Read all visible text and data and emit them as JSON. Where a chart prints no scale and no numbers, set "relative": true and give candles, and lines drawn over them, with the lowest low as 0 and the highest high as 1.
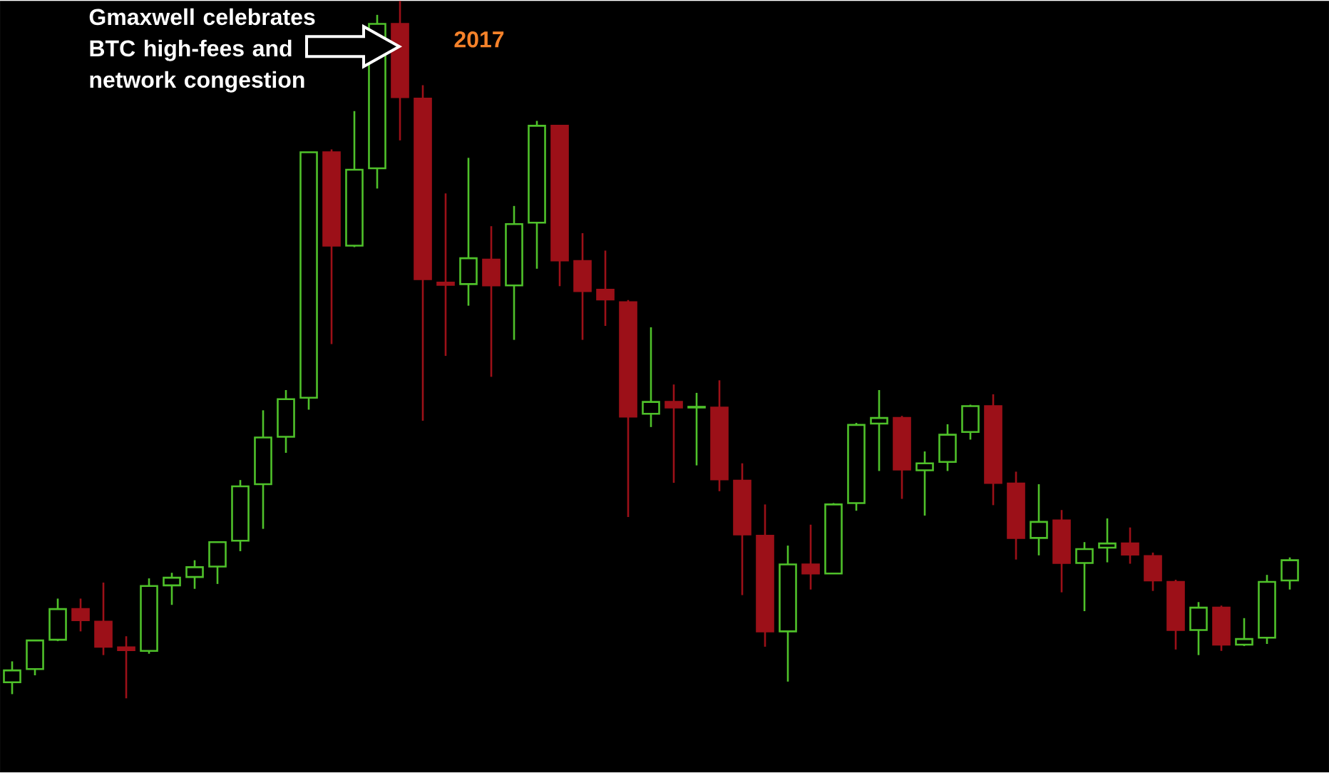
{
  "chart_data": {
    "type": "candlestick",
    "relative": true,
    "tick_labels": false,
    "categories": [
      null,
      null,
      null,
      null,
      null,
      null,
      null,
      null,
      null,
      null,
      null,
      null,
      null,
      null,
      null,
      null,
      null,
      null,
      null,
      null,
      null,
      null,
      null,
      null,
      null,
      null,
      null,
      null,
      null,
      null,
      null,
      null,
      null,
      null,
      null,
      null,
      null,
      null,
      null,
      null,
      null,
      null,
      null,
      null,
      null,
      null,
      null,
      null,
      null,
      null,
      null,
      null,
      null,
      null,
      null,
      null,
      null
    ],
    "ohlc": [
      [
        0.023,
        0.053,
        0.006,
        0.04
      ],
      [
        0.042,
        0.083,
        0.033,
        0.083
      ],
      [
        0.084,
        0.143,
        0.082,
        0.128
      ],
      [
        0.128,
        0.143,
        0.096,
        0.112
      ],
      [
        0.11,
        0.166,
        0.062,
        0.074
      ],
      [
        0.073,
        0.089,
        0.0,
        0.069
      ],
      [
        0.068,
        0.172,
        0.064,
        0.161
      ],
      [
        0.162,
        0.18,
        0.134,
        0.173
      ],
      [
        0.174,
        0.198,
        0.157,
        0.188
      ],
      [
        0.189,
        0.224,
        0.164,
        0.224
      ],
      [
        0.226,
        0.313,
        0.211,
        0.304
      ],
      [
        0.307,
        0.413,
        0.243,
        0.374
      ],
      [
        0.375,
        0.442,
        0.352,
        0.429
      ],
      [
        0.431,
        0.783,
        0.414,
        0.783
      ],
      [
        0.783,
        0.787,
        0.508,
        0.649
      ],
      [
        0.649,
        0.842,
        0.647,
        0.758
      ],
      [
        0.76,
        0.98,
        0.731,
        0.967
      ],
      [
        0.967,
        1.0,
        0.8,
        0.862
      ],
      [
        0.86,
        0.879,
        0.398,
        0.601
      ],
      [
        0.596,
        0.724,
        0.491,
        0.593
      ],
      [
        0.594,
        0.775,
        0.563,
        0.631
      ],
      [
        0.629,
        0.677,
        0.461,
        0.592
      ],
      [
        0.592,
        0.706,
        0.514,
        0.68
      ],
      [
        0.682,
        0.828,
        0.616,
        0.821
      ],
      [
        0.821,
        0.821,
        0.591,
        0.628
      ],
      [
        0.627,
        0.667,
        0.514,
        0.584
      ],
      [
        0.586,
        0.642,
        0.534,
        0.572
      ],
      [
        0.568,
        0.571,
        0.26,
        0.404
      ],
      [
        0.408,
        0.532,
        0.389,
        0.425
      ],
      [
        0.425,
        0.45,
        0.309,
        0.417
      ],
      [
        0.417,
        0.438,
        0.334,
        0.418
      ],
      [
        0.417,
        0.456,
        0.297,
        0.314
      ],
      [
        0.312,
        0.337,
        0.148,
        0.235
      ],
      [
        0.233,
        0.278,
        0.074,
        0.096
      ],
      [
        0.096,
        0.219,
        0.024,
        0.192
      ],
      [
        0.192,
        0.249,
        0.156,
        0.179
      ],
      [
        0.179,
        0.28,
        0.179,
        0.278
      ],
      [
        0.28,
        0.395,
        0.269,
        0.392
      ],
      [
        0.394,
        0.442,
        0.326,
        0.402
      ],
      [
        0.402,
        0.405,
        0.286,
        0.328
      ],
      [
        0.327,
        0.354,
        0.262,
        0.337
      ],
      [
        0.339,
        0.393,
        0.326,
        0.378
      ],
      [
        0.382,
        0.421,
        0.371,
        0.419
      ],
      [
        0.419,
        0.436,
        0.277,
        0.309
      ],
      [
        0.308,
        0.325,
        0.199,
        0.23
      ],
      [
        0.23,
        0.307,
        0.205,
        0.253
      ],
      [
        0.255,
        0.27,
        0.152,
        0.194
      ],
      [
        0.194,
        0.224,
        0.125,
        0.214
      ],
      [
        0.216,
        0.258,
        0.195,
        0.222
      ],
      [
        0.222,
        0.245,
        0.193,
        0.206
      ],
      [
        0.204,
        0.209,
        0.154,
        0.169
      ],
      [
        0.167,
        0.17,
        0.07,
        0.098
      ],
      [
        0.098,
        0.138,
        0.062,
        0.13
      ],
      [
        0.13,
        0.133,
        0.068,
        0.077
      ],
      [
        0.077,
        0.115,
        0.075,
        0.085
      ],
      [
        0.087,
        0.177,
        0.078,
        0.167
      ],
      [
        0.169,
        0.202,
        0.156,
        0.198
      ]
    ],
    "colors": [
      "#4fc12a",
      "#4fc12a",
      "#4fc12a",
      "#9c1018",
      "#9c1018",
      "#9c1018",
      "#4fc12a",
      "#4fc12a",
      "#4fc12a",
      "#4fc12a",
      "#4fc12a",
      "#4fc12a",
      "#4fc12a",
      "#4fc12a",
      "#9c1018",
      "#4fc12a",
      "#4fc12a",
      "#9c1018",
      "#9c1018",
      "#9c1018",
      "#4fc12a",
      "#9c1018",
      "#4fc12a",
      "#4fc12a",
      "#9c1018",
      "#9c1018",
      "#9c1018",
      "#9c1018",
      "#4fc12a",
      "#9c1018",
      "#4fc12a",
      "#9c1018",
      "#9c1018",
      "#9c1018",
      "#4fc12a",
      "#9c1018",
      "#4fc12a",
      "#4fc12a",
      "#4fc12a",
      "#9c1018",
      "#4fc12a",
      "#4fc12a",
      "#4fc12a",
      "#9c1018",
      "#9c1018",
      "#4fc12a",
      "#9c1018",
      "#4fc12a",
      "#4fc12a",
      "#9c1018",
      "#9c1018",
      "#9c1018",
      "#4fc12a",
      "#9c1018",
      "#4fc12a",
      "#4fc12a",
      "#4fc12a"
    ],
    "annotations": [
      "Gmaxwell celebrates BTC high-fees and network congestion",
      "2017"
    ]
  }
}
